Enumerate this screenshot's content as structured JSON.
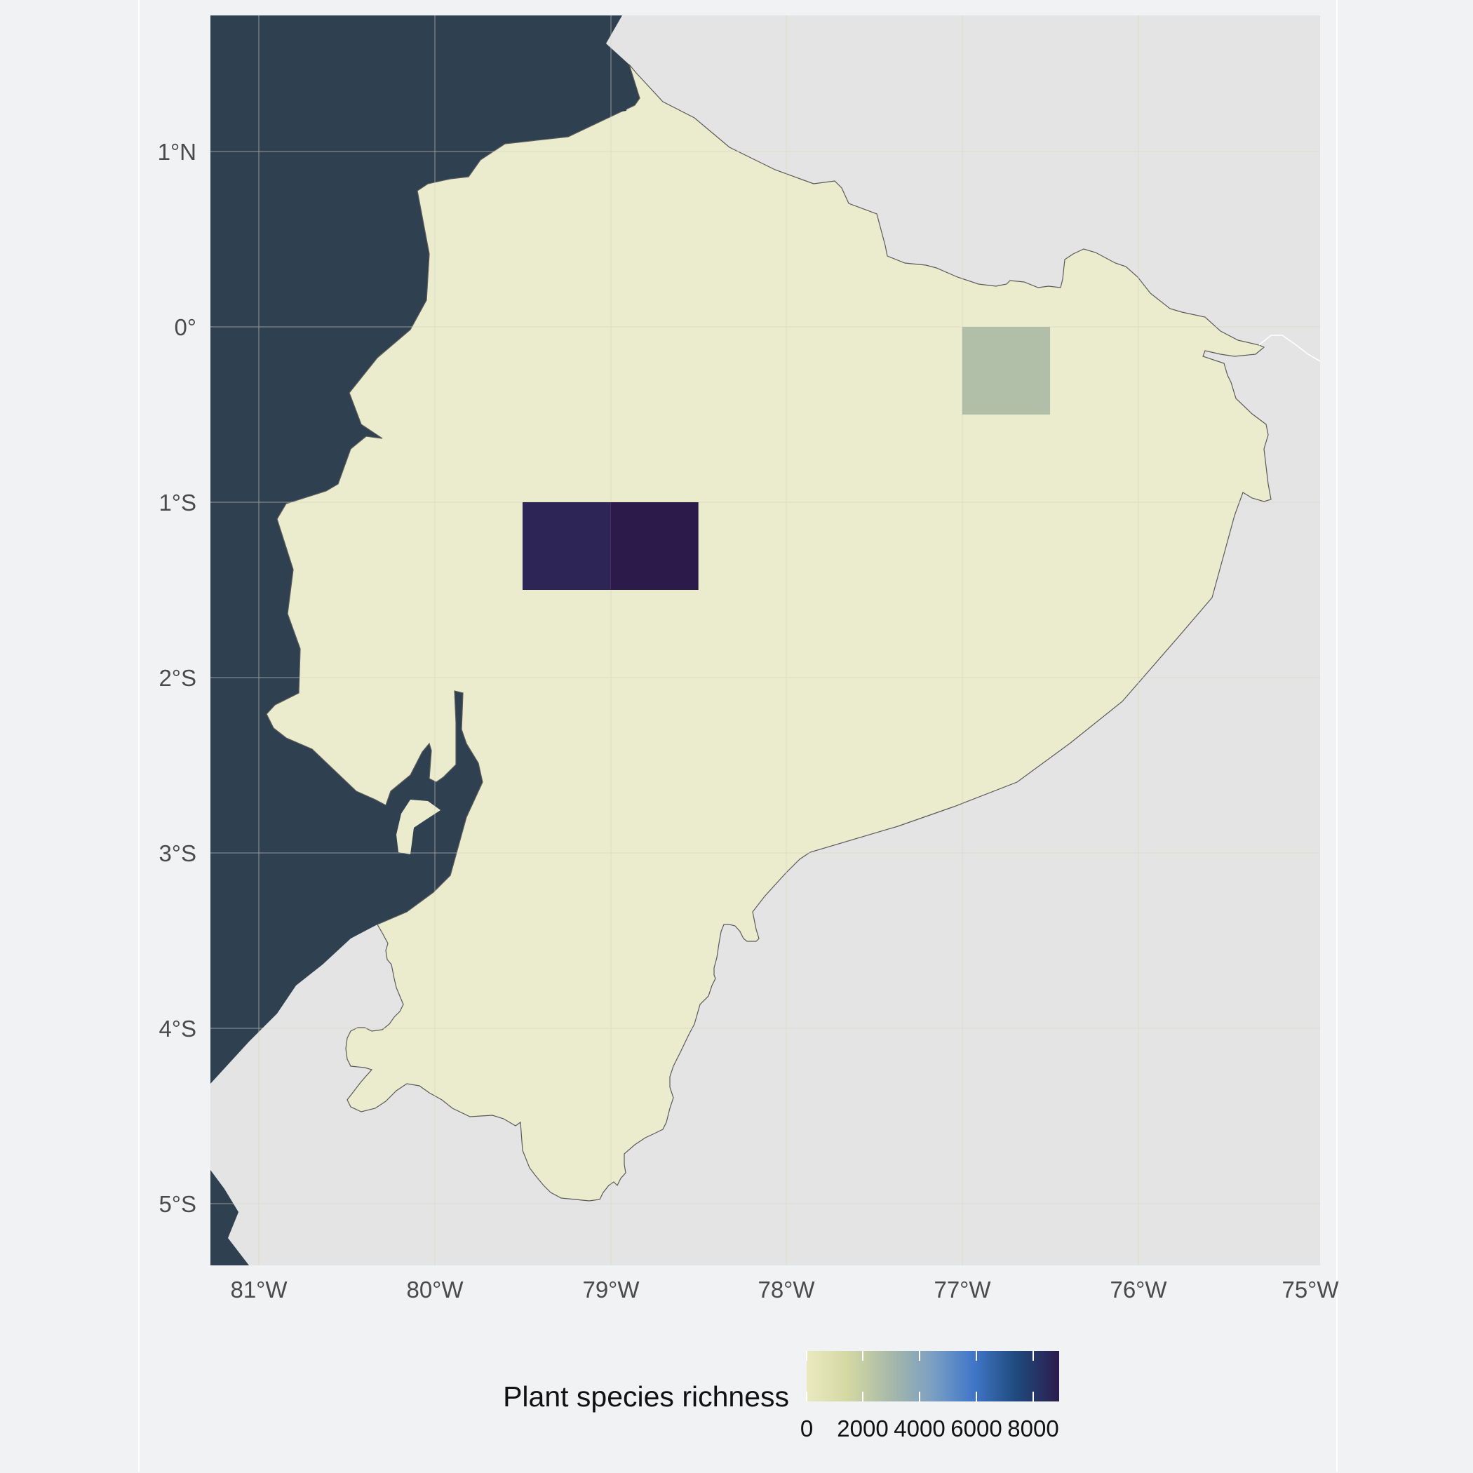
{
  "map": {
    "region": "Ecuador",
    "colors": {
      "ocean": "#2f4050",
      "neighbor_land": "#e4e4e4",
      "country_land": "#ebebcd",
      "background": "#f1f2f4",
      "border": "#5a5a5a"
    },
    "y_axis_labels": [
      "1°N",
      "0°",
      "1°S",
      "2°S",
      "3°S",
      "4°S",
      "5°S"
    ],
    "x_axis_labels": [
      "81°W",
      "80°W",
      "79°W",
      "78°W",
      "77°W",
      "76°W",
      "75°W"
    ],
    "cells": [
      {
        "lon_min": -79.5,
        "lon_max": -79.0,
        "lat_min": -1.5,
        "lat_max": -1.0,
        "richness": 8300,
        "color": "#2c2555"
      },
      {
        "lon_min": -79.0,
        "lon_max": -78.5,
        "lat_min": -1.5,
        "lat_max": -1.0,
        "richness": 9000,
        "color": "#2b1a4a"
      },
      {
        "lon_min": -77.0,
        "lon_max": -76.5,
        "lat_min": -0.5,
        "lat_max": 0.0,
        "richness": 2700,
        "color": "#b2bfa8"
      }
    ]
  },
  "legend": {
    "title": "Plant species richness",
    "tick_labels": [
      "0",
      "2000",
      "4000",
      "6000",
      "8000"
    ],
    "gradient_colors": [
      "#eae9c1",
      "#d4d9a3",
      "#a8b9a8",
      "#7b9fc4",
      "#4177c8",
      "#1f4a7d",
      "#2c1c4d"
    ]
  }
}
